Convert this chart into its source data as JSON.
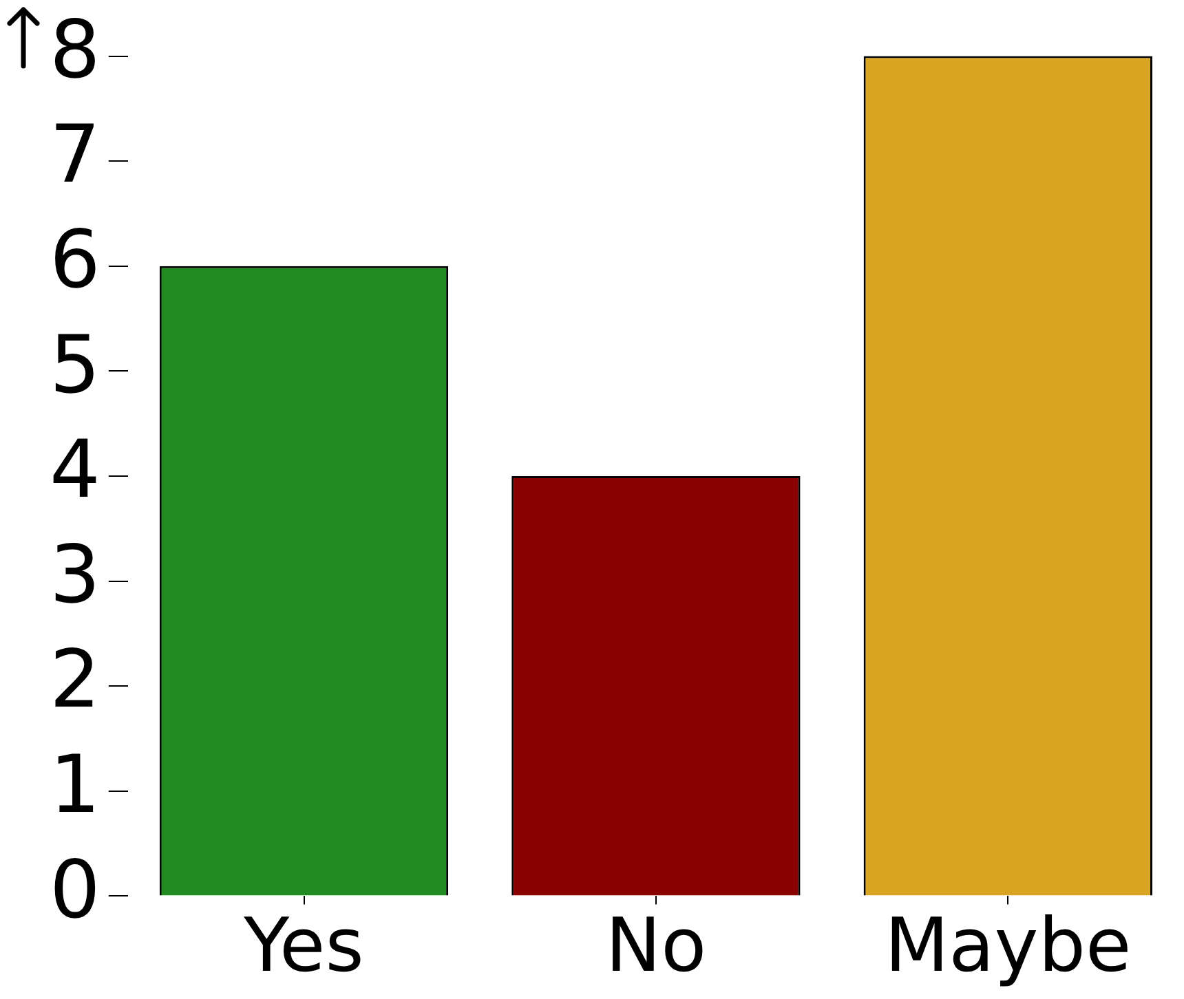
{
  "chart_data": {
    "type": "bar",
    "categories": [
      "Yes",
      "No",
      "Maybe"
    ],
    "values": [
      6,
      4,
      8
    ],
    "colors": [
      "#228b22",
      "#8b0000",
      "#daa520"
    ],
    "ylim": [
      0,
      8
    ],
    "yticks": [
      0,
      1,
      2,
      3,
      4,
      5,
      6,
      7,
      8
    ],
    "grid": false,
    "legend": false
  }
}
